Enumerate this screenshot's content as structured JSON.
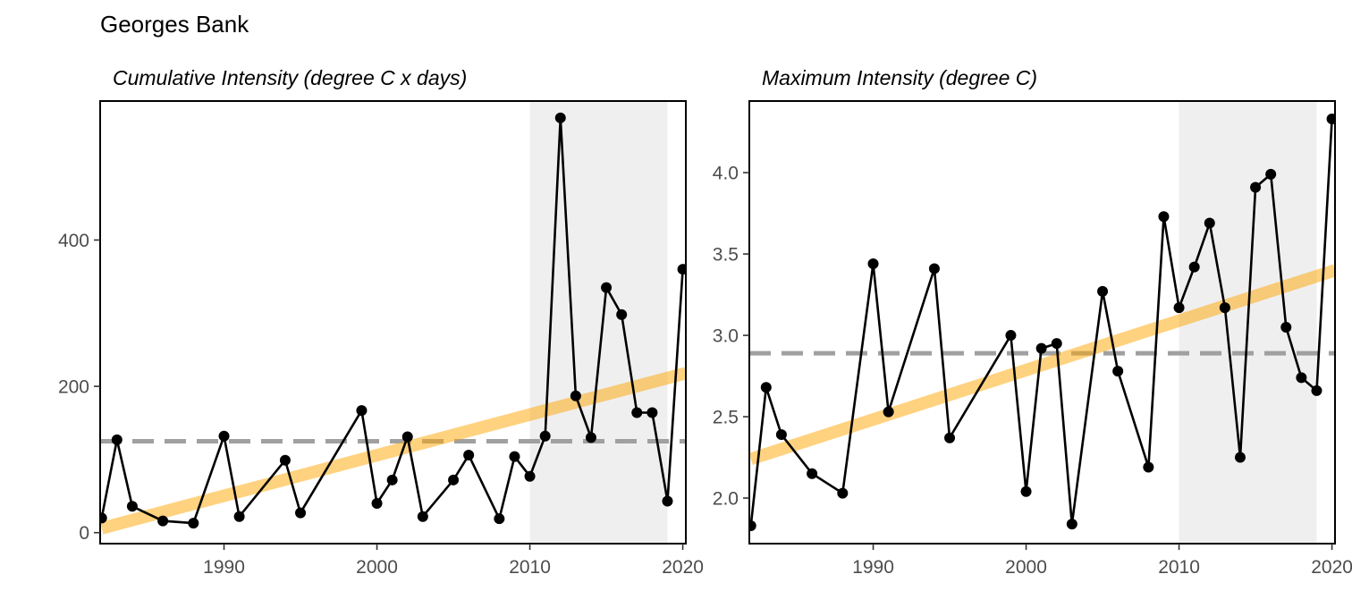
{
  "figure": {
    "title": "Georges Bank"
  },
  "colors": {
    "series": "#000000",
    "trend": "#FFA500",
    "mean_line": "#A0A0A0",
    "highlight": "#EFEFEF"
  },
  "chart_data": [
    {
      "type": "line",
      "title": "Cumulative Intensity (degree C x days)",
      "xlabel": "",
      "ylabel": "",
      "xlim": [
        1981.9,
        2020.2
      ],
      "ylim": [
        -15,
        590
      ],
      "xticks": [
        1990,
        2000,
        2010,
        2020
      ],
      "yticks": [
        0,
        200,
        400
      ],
      "grid": false,
      "highlight_span": [
        2010,
        2019
      ],
      "mean_line": 125,
      "trend_line": {
        "x": [
          1982,
          2020.2
        ],
        "y": [
          6,
          218
        ]
      },
      "series": [
        {
          "x": [
            1982,
            1983,
            1984,
            1986,
            1988,
            1990,
            1991,
            1994,
            1995,
            1999,
            2000,
            2001,
            2002,
            2003,
            2005,
            2006,
            2008,
            2009,
            2010,
            2011,
            2012,
            2013,
            2014,
            2015,
            2016,
            2017,
            2018,
            2019,
            2020
          ],
          "y": [
            20,
            127,
            36,
            16,
            13,
            132,
            22,
            99,
            27,
            167,
            40,
            72,
            131,
            22,
            72,
            106,
            19,
            104,
            77,
            132,
            567,
            187,
            130,
            335,
            298,
            164,
            164,
            43,
            360
          ]
        }
      ]
    },
    {
      "type": "line",
      "title": "Maximum Intensity (degree C)",
      "xlabel": "",
      "ylabel": "",
      "xlim": [
        1981.9,
        2020.2
      ],
      "ylim": [
        1.72,
        4.44
      ],
      "xticks": [
        1990,
        2000,
        2010,
        2020
      ],
      "yticks": [
        2.0,
        2.5,
        3.0,
        3.5,
        4.0
      ],
      "ytick_labels": [
        "2.0",
        "2.5",
        "3.0",
        "3.5",
        "4.0"
      ],
      "grid": false,
      "highlight_span": [
        2010,
        2019
      ],
      "mean_line": 2.89,
      "trend_line": {
        "x": [
          1982,
          2020.2
        ],
        "y": [
          2.24,
          3.4
        ]
      },
      "series": [
        {
          "x": [
            1982,
            1983,
            1984,
            1986,
            1988,
            1990,
            1991,
            1994,
            1995,
            1999,
            2000,
            2001,
            2002,
            2003,
            2005,
            2006,
            2008,
            2009,
            2010,
            2011,
            2012,
            2013,
            2014,
            2015,
            2016,
            2017,
            2018,
            2019,
            2020
          ],
          "y": [
            1.83,
            2.68,
            2.39,
            2.15,
            2.03,
            3.44,
            2.53,
            3.41,
            2.37,
            3.0,
            2.04,
            2.92,
            2.95,
            1.84,
            3.27,
            2.78,
            2.19,
            3.73,
            3.17,
            3.42,
            3.69,
            3.17,
            2.25,
            3.91,
            3.99,
            3.05,
            2.74,
            2.66,
            4.33
          ]
        }
      ]
    }
  ]
}
